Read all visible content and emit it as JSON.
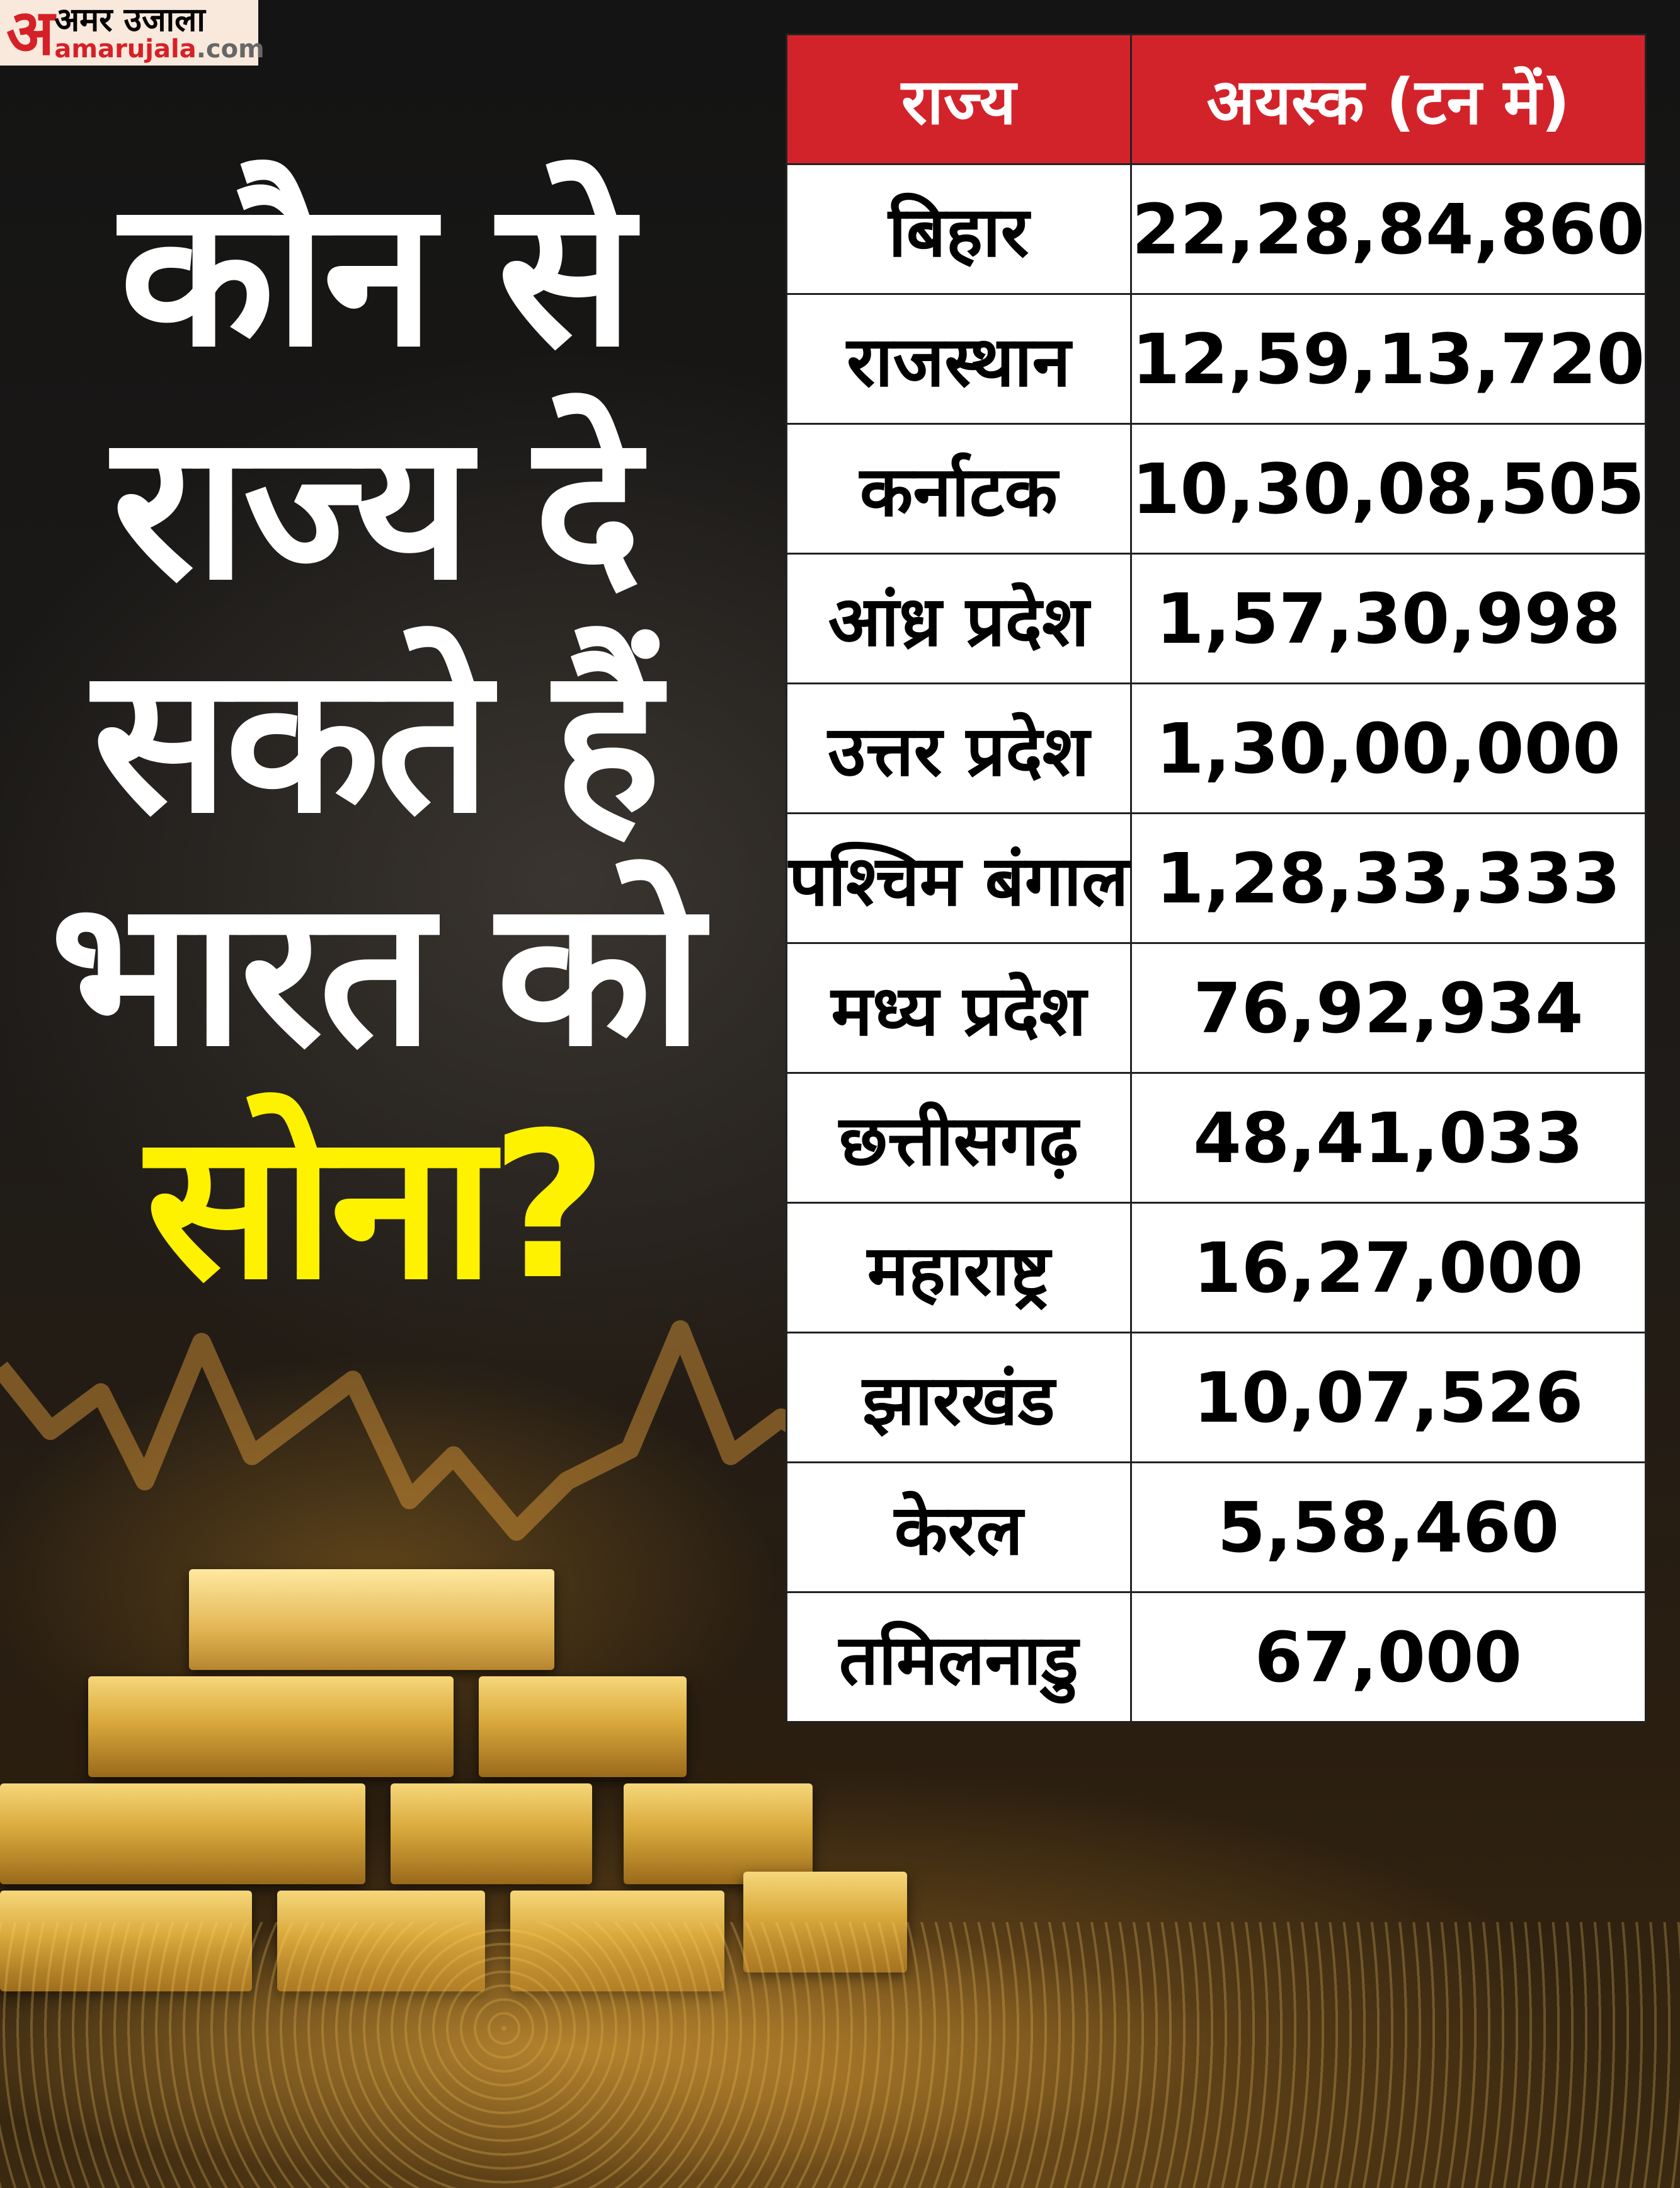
{
  "logo": {
    "mark": "अ",
    "hindi": "अमर उजाला",
    "english_main": "amarujala",
    "english_suffix": ".com"
  },
  "headline": {
    "lines": [
      "कौन से",
      "राज्य दे",
      "सकते हैं",
      "भारत को"
    ],
    "highlight": "सोना?",
    "highlight_color": "#fff200"
  },
  "table": {
    "header_color": "#d3232a",
    "headers": [
      "राज्य",
      "अयस्क (टन में)"
    ],
    "rows": [
      {
        "state": "बिहार",
        "ore": "22,28,84,860"
      },
      {
        "state": "राजस्थान",
        "ore": "12,59,13,720"
      },
      {
        "state": "कर्नाटक",
        "ore": "10,30,08,505"
      },
      {
        "state": "आंध्र प्रदेश",
        "ore": "1,57,30,998"
      },
      {
        "state": "उत्तर प्रदेश",
        "ore": "1,30,00,000"
      },
      {
        "state": "पश्चिम बंगाल",
        "ore": "1,28,33,333"
      },
      {
        "state": "मध्य प्रदेश",
        "ore": "76,92,934"
      },
      {
        "state": "छत्तीसगढ़",
        "ore": "48,41,033"
      },
      {
        "state": "महाराष्ट्र",
        "ore": "16,27,000"
      },
      {
        "state": "झारखंड",
        "ore": "10,07,526"
      },
      {
        "state": "केरल",
        "ore": "5,58,460"
      },
      {
        "state": "तमिलनाडु",
        "ore": "67,000"
      }
    ]
  }
}
